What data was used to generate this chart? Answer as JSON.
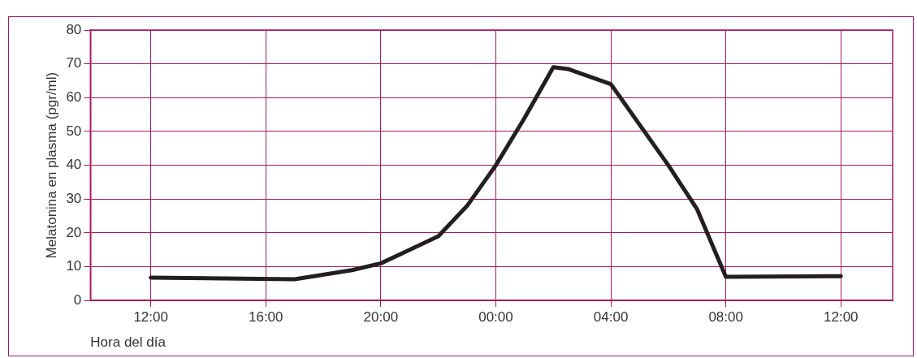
{
  "chart_data": {
    "type": "line",
    "xlabel": "Hora del día",
    "ylabel": "Melatonina en plasma (pgr/ml)",
    "x": [
      "--01-01T12:00",
      "--01-01T17:00",
      "--01-01T19:00",
      "--01-01T20:00",
      "--01-01T21:00",
      "--01-01T22:00",
      "--01-01T23:00",
      "--01-02T00:00",
      "--01-02T01:00",
      "--01-02T02:00",
      "--01-02T02:30",
      "--01-02T04:00",
      "--01-02T05:00",
      "--01-02T06:00",
      "--01-02T07:00",
      "--01-02T08:00",
      "--01-02T12:00"
    ],
    "series": [
      {
        "color": "#231f20",
        "values": [
          6.8,
          6.3,
          9,
          11,
          15,
          19,
          28,
          40,
          54,
          69,
          68.5,
          64,
          52,
          40,
          27,
          7,
          7.2
        ]
      }
    ],
    "xlim": [
      "--01-01T09:54",
      "--01-02T13:48"
    ],
    "xticks": [
      {
        "value": "--01-01T12:00",
        "label": "12:00"
      },
      {
        "value": "--01-01T16:00",
        "label": "16:00"
      },
      {
        "value": "--01-01T20:00",
        "label": "20:00"
      },
      {
        "value": "--01-02T00:00",
        "label": "00:00"
      },
      {
        "value": "--01-02T04:00",
        "label": "04:00"
      },
      {
        "value": "--01-02T08:00",
        "label": "08:00"
      },
      {
        "value": "--01-02T12:00",
        "label": "12:00"
      }
    ],
    "ylim": [
      0,
      80
    ],
    "yticks": [
      0,
      10,
      20,
      30,
      40,
      50,
      60,
      70,
      80
    ],
    "grid": true,
    "legend": false,
    "marker": "none",
    "line_style": "solid"
  }
}
